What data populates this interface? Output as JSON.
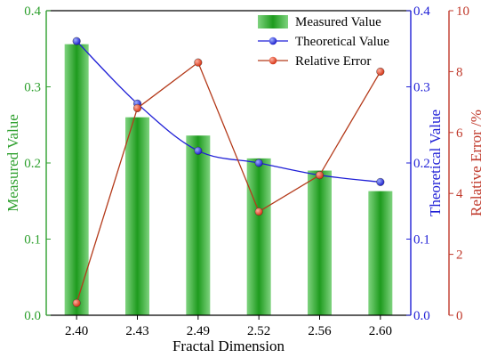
{
  "chart_data": {
    "type": "bar",
    "categories": [
      "2.40",
      "2.43",
      "2.49",
      "2.52",
      "2.56",
      "2.60"
    ],
    "xlabel": "Fractal Dimension",
    "series": [
      {
        "name": "Measured Value",
        "kind": "bar",
        "axis": "left",
        "color": "#3cb33c",
        "values": [
          0.356,
          0.26,
          0.236,
          0.206,
          0.19,
          0.163
        ]
      },
      {
        "name": "Theoretical Value",
        "kind": "line",
        "axis": "right1",
        "color": "#1f1fd6",
        "values": [
          0.36,
          0.278,
          0.216,
          0.2,
          0.184,
          0.175
        ]
      },
      {
        "name": "Relative Error",
        "kind": "line",
        "axis": "right2",
        "color": "#b43a1a",
        "values": [
          0.4,
          6.8,
          8.3,
          3.4,
          4.6,
          8.0
        ]
      }
    ],
    "axes": {
      "left": {
        "label": "Measured Value",
        "min": 0,
        "max": 0.4,
        "ticks": [
          "0.0",
          "0.1",
          "0.2",
          "0.3",
          "0.4"
        ],
        "color": "#2ea02e"
      },
      "right1": {
        "label": "Theoretical Value",
        "min": 0,
        "max": 0.4,
        "ticks": [
          "0.0",
          "0.1",
          "0.2",
          "0.3",
          "0.4"
        ],
        "color": "#1f1fd6"
      },
      "right2": {
        "label": "Relative Error /%",
        "min": 0,
        "max": 10,
        "ticks": [
          "0",
          "2",
          "4",
          "6",
          "8",
          "10"
        ],
        "color": "#c0392b"
      }
    },
    "legend": {
      "position": "top-right"
    },
    "grid": false
  }
}
